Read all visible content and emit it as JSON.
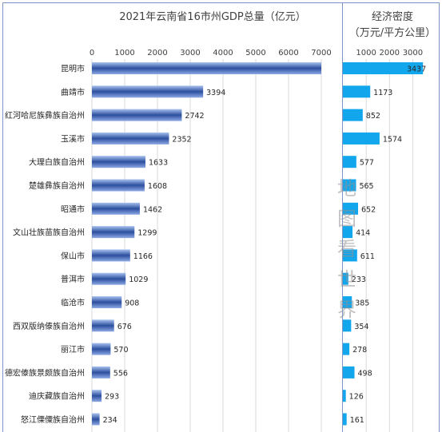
{
  "chart_data": [
    {
      "type": "bar",
      "orientation": "horizontal",
      "title": "2021年云南省16市州GDP总量（亿元）",
      "xlim": [
        0,
        7000
      ],
      "ticks": [
        "0",
        "1000",
        "2000",
        "3000",
        "4000",
        "5000",
        "6000",
        "7000"
      ],
      "tick_values": [
        0,
        1000,
        2000,
        3000,
        4000,
        5000,
        6000,
        7000
      ],
      "grid": true,
      "colors": {
        "bar_dark": "#2c4f9e",
        "bar_light": "#a9c2ef"
      },
      "categories": [
        "昆明市",
        "曲靖市",
        "红河哈尼族彝族自治州",
        "玉溪市",
        "大理白族自治州",
        "楚雄彝族自治州",
        "昭通市",
        "文山壮族苗族自治州",
        "保山市",
        "普洱市",
        "临沧市",
        "西双版纳傣族自治州",
        "丽江市",
        "德宏傣族景颇族自治州",
        "迪庆藏族自治州",
        "怒江傈僳族自治州"
      ],
      "values": [
        7000,
        3394,
        2742,
        2352,
        1633,
        1608,
        1462,
        1299,
        1166,
        1029,
        908,
        676,
        570,
        556,
        293,
        234
      ],
      "value_labels": [
        "",
        "3394",
        "2742",
        "2352",
        "1633",
        "1608",
        "1462",
        "1299",
        "1166",
        "1029",
        "908",
        "676",
        "570",
        "556",
        "293",
        "234"
      ]
    },
    {
      "type": "bar",
      "orientation": "horizontal",
      "title_line1": "经济密度",
      "title_line2": "（万元/平方公里）",
      "xlim": [
        0,
        3500
      ],
      "ticks": [
        "1000",
        "2000",
        "3000"
      ],
      "tick_values": [
        1000,
        2000,
        3000
      ],
      "grid": true,
      "colors": {
        "bar": "#12a6ec"
      },
      "values": [
        3437,
        1173,
        852,
        1574,
        577,
        565,
        652,
        414,
        611,
        233,
        385,
        354,
        278,
        498,
        126,
        161
      ],
      "value_labels": [
        "3437",
        "1173",
        "852",
        "1574",
        "577",
        "565",
        "652",
        "414",
        "611",
        "233",
        "385",
        "354",
        "278",
        "498",
        "126",
        "161"
      ]
    }
  ],
  "watermark": [
    "地",
    "图",
    "看",
    "世",
    "界"
  ]
}
